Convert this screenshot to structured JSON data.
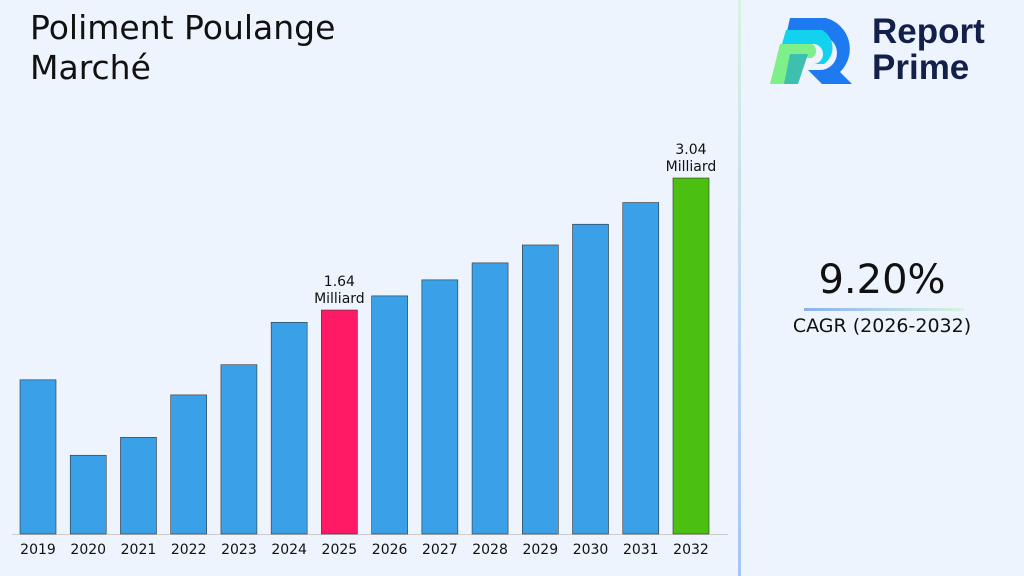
{
  "title": "Poliment Poulange Marché",
  "logo": {
    "line1": "Report",
    "line2": "Prime"
  },
  "cagr": {
    "value": "9.20%",
    "label": "CAGR (2026-2032)"
  },
  "chart_data": {
    "type": "bar",
    "title": "Poliment Poulange Marché",
    "categories": [
      "2019",
      "2020",
      "2021",
      "2022",
      "2023",
      "2024",
      "2025",
      "2026",
      "2027",
      "2028",
      "2029",
      "2030",
      "2031",
      "2032"
    ],
    "values": [
      0.9,
      0.1,
      0.29,
      0.74,
      1.06,
      1.51,
      1.64,
      1.79,
      1.96,
      2.14,
      2.33,
      2.55,
      2.78,
      3.04
    ],
    "colors": [
      "#3aa0e8",
      "#3aa0e8",
      "#3aa0e8",
      "#3aa0e8",
      "#3aa0e8",
      "#3aa0e8",
      "#ff1a66",
      "#3aa0e8",
      "#3aa0e8",
      "#3aa0e8",
      "#3aa0e8",
      "#3aa0e8",
      "#3aa0e8",
      "#4cc010"
    ],
    "data_labels": {
      "2025": [
        "1.64",
        "Milliard"
      ],
      "2032": [
        "3.04",
        "Milliard"
      ]
    },
    "ylim": [
      -0.735,
      3.3
    ],
    "grid": false,
    "xlabel": "",
    "ylabel": ""
  }
}
